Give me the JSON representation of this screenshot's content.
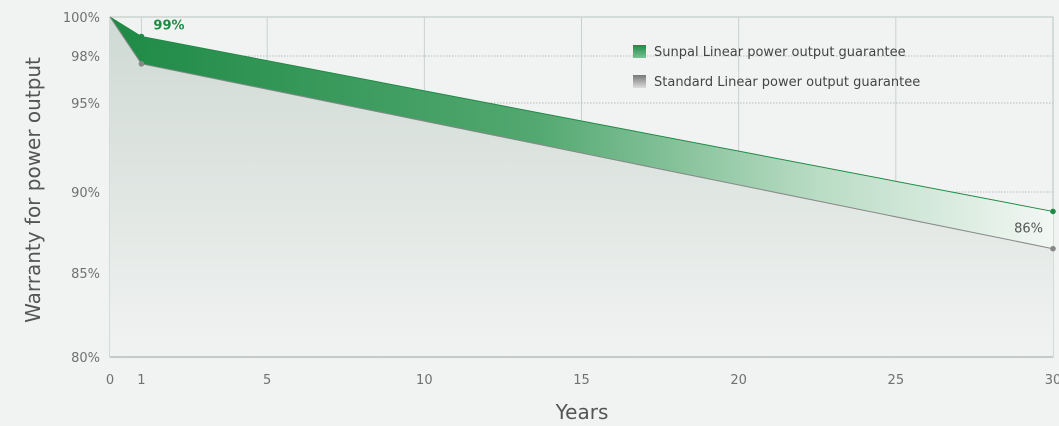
{
  "chart_data": {
    "type": "area",
    "xlabel": "Years",
    "ylabel": "Warranty for power output",
    "xlim": [
      0,
      30
    ],
    "ylim": [
      80,
      100
    ],
    "x_ticks": [
      0,
      1,
      5,
      10,
      15,
      20,
      25,
      30
    ],
    "y_ticks": [
      80,
      85,
      90,
      95,
      98,
      100
    ],
    "y_tick_labels": [
      "80%",
      "85%",
      "90%",
      "95%",
      "98%",
      "100%"
    ],
    "grid": true,
    "legend_position": "top-right",
    "series": [
      {
        "name": "Sunpal Linear power output guarantee",
        "color": "#1e8a46",
        "points": [
          [
            0,
            100
          ],
          [
            1,
            99
          ],
          [
            30,
            88.8
          ]
        ]
      },
      {
        "name": "Standard Linear power output guarantee",
        "color": "#888888",
        "points": [
          [
            0,
            100
          ],
          [
            1,
            97.5
          ],
          [
            30,
            86.5
          ]
        ]
      }
    ],
    "annotations": [
      {
        "text": "99%",
        "x": 1,
        "y": 99,
        "series": 0
      },
      {
        "text": "86%",
        "x": 30,
        "y": 86.5,
        "series": 1
      }
    ]
  }
}
